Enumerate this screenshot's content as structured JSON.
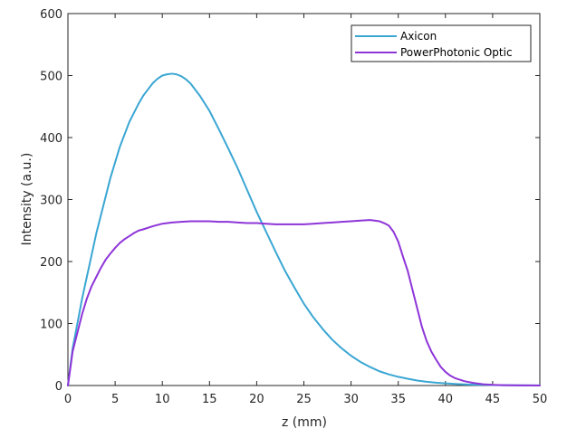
{
  "chart_data": {
    "type": "line",
    "xlabel": "z (mm)",
    "ylabel": "Intensity (a.u.)",
    "xlim": [
      0,
      50
    ],
    "ylim": [
      0,
      600
    ],
    "xticks": [
      0,
      5,
      10,
      15,
      20,
      25,
      30,
      35,
      40,
      45,
      50
    ],
    "yticks": [
      0,
      100,
      200,
      300,
      400,
      500,
      600
    ],
    "grid": false,
    "legend_position": "top-right",
    "series": [
      {
        "name": "Axicon",
        "color": "#3AA6D3",
        "x": [
          0,
          0.5,
          1,
          1.5,
          2,
          2.5,
          3,
          3.5,
          4,
          4.5,
          5,
          5.5,
          6,
          6.5,
          7,
          7.5,
          8,
          8.5,
          9,
          9.5,
          10,
          10.5,
          11,
          11.5,
          12,
          12.5,
          13,
          14,
          15,
          16,
          17,
          18,
          19,
          20,
          21,
          22,
          23,
          24,
          25,
          26,
          27,
          28,
          29,
          30,
          31,
          32,
          33,
          34,
          35,
          36,
          37,
          38,
          39,
          40,
          41,
          42,
          43,
          44,
          45,
          46,
          47,
          48,
          49,
          50
        ],
        "y": [
          0,
          60,
          100,
          140,
          175,
          210,
          245,
          275,
          305,
          335,
          360,
          385,
          405,
          425,
          440,
          455,
          468,
          478,
          488,
          495,
          500,
          502,
          503,
          502,
          499,
          494,
          487,
          467,
          443,
          413,
          382,
          350,
          315,
          280,
          248,
          216,
          185,
          158,
          132,
          110,
          91,
          74,
          60,
          48,
          38,
          30,
          23,
          18,
          14,
          11,
          8,
          6,
          4.5,
          3.5,
          2.5,
          1.8,
          1.3,
          1,
          0.8,
          0.6,
          0.4,
          0.3,
          0.2,
          0.1
        ]
      },
      {
        "name": "PowerPhotonic Optic",
        "color": "#8E35D8",
        "x": [
          0,
          0.5,
          1,
          1.5,
          2,
          2.5,
          3,
          3.5,
          4,
          4.5,
          5,
          5.5,
          6,
          6.5,
          7,
          7.5,
          8,
          9,
          10,
          11,
          12,
          13,
          14,
          15,
          16,
          17,
          18,
          19,
          20,
          21,
          22,
          23,
          24,
          25,
          26,
          27,
          28,
          29,
          30,
          31,
          32,
          32.5,
          33,
          33.5,
          34,
          34.5,
          35,
          35.5,
          36,
          36.5,
          37,
          37.5,
          38,
          38.5,
          39,
          39.5,
          40,
          40.5,
          41,
          42,
          43,
          44,
          45,
          46,
          47,
          48,
          49,
          50
        ],
        "y": [
          0,
          55,
          85,
          115,
          140,
          160,
          175,
          190,
          203,
          213,
          222,
          230,
          236,
          241,
          246,
          250,
          252,
          257,
          261,
          263,
          264,
          265,
          265,
          265,
          264,
          264,
          263,
          262,
          262,
          261,
          260,
          260,
          260,
          260,
          261,
          262,
          263,
          264,
          265,
          266,
          267,
          266,
          265,
          262,
          258,
          248,
          232,
          208,
          185,
          155,
          125,
          95,
          72,
          55,
          42,
          30,
          22,
          16,
          12,
          7,
          4,
          2,
          1,
          0.5,
          0.3,
          0.2,
          0.1,
          0
        ]
      }
    ]
  }
}
